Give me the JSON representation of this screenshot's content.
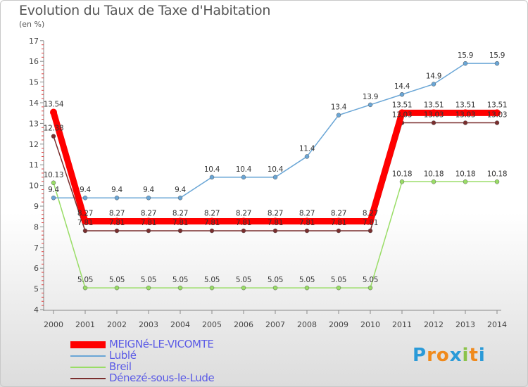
{
  "header": {
    "title": "Evolution du Taux de Taxe d'Habitation",
    "unit": "(en %)"
  },
  "logo": {
    "letters": [
      "P",
      "r",
      "o",
      "x",
      "i",
      "t",
      "i"
    ],
    "colors": [
      "#2a9ad8",
      "#f08a1c",
      "#f08a1c",
      "#2a9ad8",
      "#8bc34a",
      "#f08a1c",
      "#2a9ad8"
    ]
  },
  "chart_data": {
    "type": "line",
    "x": [
      "2000",
      "2001",
      "2002",
      "2003",
      "2004",
      "2005",
      "2006",
      "2007",
      "2008",
      "2009",
      "2010",
      "2011",
      "2012",
      "2013",
      "2014"
    ],
    "ylim": [
      4,
      17
    ],
    "yticks": [
      "4",
      "5",
      "6",
      "7",
      "8",
      "9",
      "10",
      "11",
      "12",
      "13",
      "14",
      "15",
      "16",
      "17"
    ],
    "grid": false,
    "legend_position": "bottom-left",
    "series": [
      {
        "name": "MEIGNé-LE-VICOMTE",
        "color": "#ff0000",
        "values": [
          13.54,
          8.27,
          8.27,
          8.27,
          8.27,
          8.27,
          8.27,
          8.27,
          8.27,
          8.27,
          8.27,
          13.51,
          13.51,
          13.51,
          13.51
        ],
        "labels": [
          "13.54",
          "8.27",
          "8.27",
          "8.27",
          "8.27",
          "8.27",
          "8.27",
          "8.27",
          "8.27",
          "8.27",
          "8.27",
          "13.51",
          "13.51",
          "13.51",
          "13.51"
        ]
      },
      {
        "name": "Lublé",
        "color": "#6aa6d6",
        "values": [
          9.4,
          9.4,
          9.4,
          9.4,
          9.4,
          10.4,
          10.4,
          10.4,
          11.4,
          13.4,
          13.9,
          14.4,
          14.9,
          15.9,
          15.9
        ],
        "labels": [
          "9.4",
          "9.4",
          "9.4",
          "9.4",
          "9.4",
          "10.4",
          "10.4",
          "10.4",
          "11.4",
          "13.4",
          "13.9",
          "14.4",
          "14.9",
          "15.9",
          "15.9"
        ]
      },
      {
        "name": "Breil",
        "color": "#99dd66",
        "values": [
          10.13,
          5.05,
          5.05,
          5.05,
          5.05,
          5.05,
          5.05,
          5.05,
          5.05,
          5.05,
          5.05,
          10.18,
          10.18,
          10.18,
          10.18
        ],
        "labels": [
          "10.13",
          "5.05",
          "5.05",
          "5.05",
          "5.05",
          "5.05",
          "5.05",
          "5.05",
          "5.05",
          "5.05",
          "5.05",
          "10.18",
          "10.18",
          "10.18",
          "10.18"
        ]
      },
      {
        "name": "Dénezé-sous-le-Lude",
        "color": "#7a2e2e",
        "values": [
          12.38,
          7.81,
          7.81,
          7.81,
          7.81,
          7.81,
          7.81,
          7.81,
          7.81,
          7.81,
          7.81,
          13.03,
          13.03,
          13.03,
          13.03
        ],
        "labels": [
          "12.38",
          "7.81",
          "7.81",
          "7.81",
          "7.81",
          "7.81",
          "7.81",
          "7.81",
          "7.81",
          "7.81",
          "7.81",
          "13.03",
          "13.03",
          "13.03",
          "13.03"
        ]
      }
    ]
  }
}
